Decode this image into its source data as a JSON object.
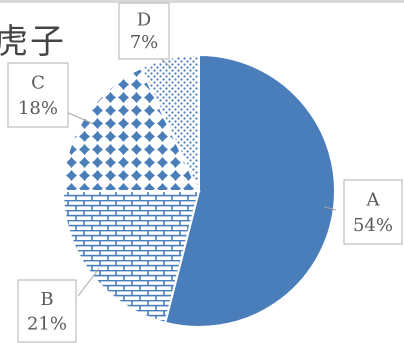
{
  "fragment_text": "虎子",
  "colors": {
    "accent": "#4a7ebb",
    "pattern_bg": "#ffffff",
    "label_border": "#bfbfbf",
    "label_text": "#595959"
  },
  "chart_data": {
    "type": "pie",
    "title": "",
    "slices": [
      {
        "label": "A",
        "value": 54,
        "value_text": "54%",
        "pattern": "solid"
      },
      {
        "label": "B",
        "value": 21,
        "value_text": "21%",
        "pattern": "brick"
      },
      {
        "label": "C",
        "value": 18,
        "value_text": "18%",
        "pattern": "diamond"
      },
      {
        "label": "D",
        "value": 7,
        "value_text": "7%",
        "pattern": "dots"
      }
    ],
    "start_angle_deg": 0,
    "direction": "clockwise",
    "legend": "none",
    "data_labels": "callout"
  }
}
